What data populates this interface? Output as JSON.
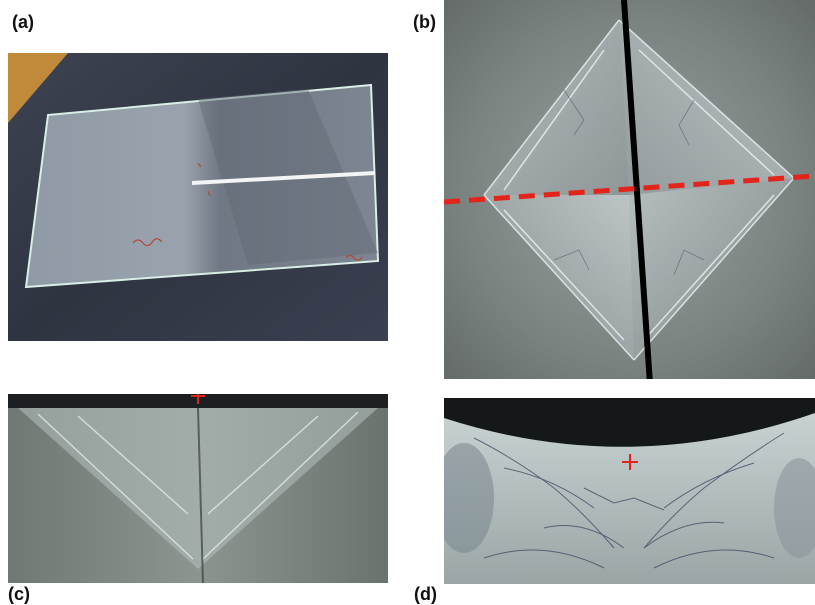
{
  "figure": {
    "panels": [
      {
        "label": "(a)",
        "content": "glass-slide-photo"
      },
      {
        "label": "(b)",
        "content": "indentation-top-view"
      },
      {
        "label": "(c)",
        "content": "indentation-cross-section"
      },
      {
        "label": "(d)",
        "content": "indentation-cross-section-cracks"
      }
    ],
    "colors": {
      "marker": "#e3241b",
      "cut_line_vertical": "#000000",
      "cut_line_horizontal": "#e3241b"
    }
  }
}
